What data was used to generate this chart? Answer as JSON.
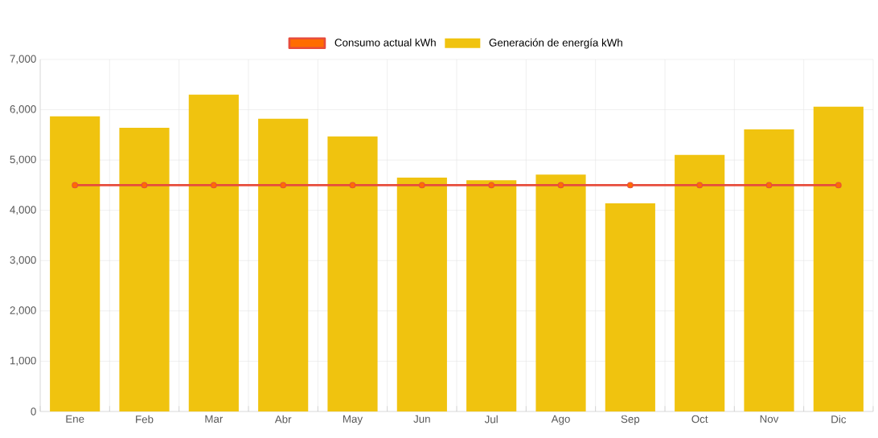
{
  "chart_data": {
    "type": "bar",
    "categories": [
      "Ene",
      "Feb",
      "Mar",
      "Abr",
      "May",
      "Jun",
      "Jul",
      "Ago",
      "Sep",
      "Oct",
      "Nov",
      "Dic"
    ],
    "series": [
      {
        "name": "Consumo actual kWh",
        "type": "line",
        "color": "#e74c3c",
        "marker": "circle",
        "values": [
          4500,
          4500,
          4500,
          4500,
          4500,
          4500,
          4500,
          4500,
          4500,
          4500,
          4500,
          4500
        ]
      },
      {
        "name": "Generación de energía kWh",
        "type": "bar",
        "color": "#f0c30f",
        "values": [
          5870,
          5640,
          6300,
          5820,
          5470,
          4650,
          4600,
          4710,
          4140,
          5100,
          5610,
          6060
        ]
      }
    ],
    "ylim": [
      0,
      7000
    ],
    "yticks": [
      {
        "value": 0,
        "label": "0"
      },
      {
        "value": 1000,
        "label": "1,000"
      },
      {
        "value": 2000,
        "label": "2,000"
      },
      {
        "value": 3000,
        "label": "3,000"
      },
      {
        "value": 4000,
        "label": "4,000"
      },
      {
        "value": 5000,
        "label": "5,000"
      },
      {
        "value": 6000,
        "label": "6,000"
      },
      {
        "value": 7000,
        "label": "7,000"
      }
    ],
    "grid": true,
    "legend": "top"
  }
}
